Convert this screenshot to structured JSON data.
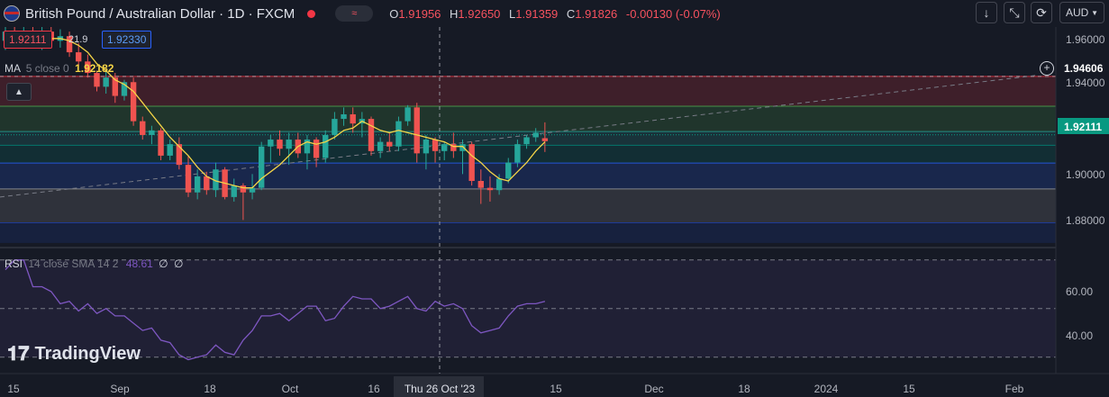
{
  "header": {
    "title": "British Pound / Australian Dollar · 1D · FXCM",
    "toggle_glyph": "≈",
    "ohlc": {
      "o_label": "O",
      "o": "1.91956",
      "h_label": "H",
      "h": "1.92650",
      "l_label": "L",
      "l": "1.91359",
      "c_label": "C",
      "c": "1.91826",
      "change": "-0.00130 (-0.07%)"
    }
  },
  "toolbar": {
    "down_icon": "↓",
    "expand_icon": "⤡",
    "screen_icon": "⟳",
    "currency": "AUD"
  },
  "price_boxes": {
    "sell": "1.92111",
    "spread": "21.9",
    "buy": "1.92330"
  },
  "ma_legend": {
    "label": "MA",
    "params": "5 close 0",
    "value": "1.92182"
  },
  "rsi_legend": {
    "label": "RSI",
    "params": "14 close SMA 14 2",
    "value": "48.61",
    "extra1": "∅",
    "extra2": "∅"
  },
  "logo": {
    "text": "TradingView"
  },
  "price_axis": {
    "ticks": [
      "1.96000",
      "1.94000",
      "1.90000",
      "1.88000"
    ],
    "alert_price": "1.94606",
    "current_price": "1.92111"
  },
  "rsi_axis": {
    "ticks": [
      "60.00",
      "40.00"
    ]
  },
  "time_axis": {
    "labels": [
      "15",
      "Sep",
      "18",
      "Oct",
      "16",
      "Thu 26 Oct '23",
      "15",
      "Dec",
      "18",
      "2024",
      "15",
      "Feb"
    ]
  },
  "colors": {
    "up": "#26a69a",
    "down": "#ef5350",
    "ma": "#f5d547",
    "rsi": "#7e57c2",
    "bg": "#161a25"
  },
  "chart_data": [
    {
      "type": "candlestick",
      "title": "British Pound / Australian Dollar · 1D · FXCM",
      "ylim": [
        1.872,
        1.968
      ],
      "candles": [
        {
          "o": 1.962,
          "h": 1.968,
          "l": 1.958,
          "c": 1.966
        },
        {
          "o": 1.966,
          "h": 1.968,
          "l": 1.96,
          "c": 1.962
        },
        {
          "o": 1.962,
          "h": 1.968,
          "l": 1.959,
          "c": 1.965
        },
        {
          "o": 1.965,
          "h": 1.968,
          "l": 1.96,
          "c": 1.961
        },
        {
          "o": 1.961,
          "h": 1.968,
          "l": 1.958,
          "c": 1.966
        },
        {
          "o": 1.966,
          "h": 1.968,
          "l": 1.961,
          "c": 1.962
        },
        {
          "o": 1.962,
          "h": 1.967,
          "l": 1.959,
          "c": 1.964
        },
        {
          "o": 1.964,
          "h": 1.966,
          "l": 1.955,
          "c": 1.957
        },
        {
          "o": 1.957,
          "h": 1.961,
          "l": 1.951,
          "c": 1.953
        },
        {
          "o": 1.953,
          "h": 1.956,
          "l": 1.946,
          "c": 1.948
        },
        {
          "o": 1.948,
          "h": 1.949,
          "l": 1.94,
          "c": 1.942
        },
        {
          "o": 1.942,
          "h": 1.949,
          "l": 1.939,
          "c": 1.946
        },
        {
          "o": 1.946,
          "h": 1.948,
          "l": 1.935,
          "c": 1.938
        },
        {
          "o": 1.938,
          "h": 1.945,
          "l": 1.936,
          "c": 1.944
        },
        {
          "o": 1.944,
          "h": 1.946,
          "l": 1.925,
          "c": 1.927
        },
        {
          "o": 1.927,
          "h": 1.929,
          "l": 1.919,
          "c": 1.921
        },
        {
          "o": 1.921,
          "h": 1.925,
          "l": 1.917,
          "c": 1.923
        },
        {
          "o": 1.923,
          "h": 1.924,
          "l": 1.91,
          "c": 1.912
        },
        {
          "o": 1.912,
          "h": 1.919,
          "l": 1.91,
          "c": 1.917
        },
        {
          "o": 1.917,
          "h": 1.92,
          "l": 1.906,
          "c": 1.908
        },
        {
          "o": 1.908,
          "h": 1.912,
          "l": 1.894,
          "c": 1.896
        },
        {
          "o": 1.896,
          "h": 1.906,
          "l": 1.893,
          "c": 1.903
        },
        {
          "o": 1.903,
          "h": 1.905,
          "l": 1.895,
          "c": 1.897
        },
        {
          "o": 1.897,
          "h": 1.909,
          "l": 1.894,
          "c": 1.906
        },
        {
          "o": 1.906,
          "h": 1.907,
          "l": 1.893,
          "c": 1.894
        },
        {
          "o": 1.894,
          "h": 1.902,
          "l": 1.892,
          "c": 1.899
        },
        {
          "o": 1.899,
          "h": 1.9,
          "l": 1.884,
          "c": 1.896
        },
        {
          "o": 1.896,
          "h": 1.904,
          "l": 1.893,
          "c": 1.898
        },
        {
          "o": 1.898,
          "h": 1.918,
          "l": 1.897,
          "c": 1.916
        },
        {
          "o": 1.916,
          "h": 1.921,
          "l": 1.909,
          "c": 1.919
        },
        {
          "o": 1.919,
          "h": 1.923,
          "l": 1.912,
          "c": 1.915
        },
        {
          "o": 1.915,
          "h": 1.922,
          "l": 1.908,
          "c": 1.919
        },
        {
          "o": 1.919,
          "h": 1.922,
          "l": 1.911,
          "c": 1.913
        },
        {
          "o": 1.913,
          "h": 1.921,
          "l": 1.906,
          "c": 1.919
        },
        {
          "o": 1.919,
          "h": 1.92,
          "l": 1.907,
          "c": 1.911
        },
        {
          "o": 1.911,
          "h": 1.923,
          "l": 1.909,
          "c": 1.921
        },
        {
          "o": 1.921,
          "h": 1.931,
          "l": 1.919,
          "c": 1.928
        },
        {
          "o": 1.928,
          "h": 1.933,
          "l": 1.925,
          "c": 1.93
        },
        {
          "o": 1.93,
          "h": 1.933,
          "l": 1.922,
          "c": 1.926
        },
        {
          "o": 1.926,
          "h": 1.931,
          "l": 1.92,
          "c": 1.928
        },
        {
          "o": 1.928,
          "h": 1.929,
          "l": 1.912,
          "c": 1.914
        },
        {
          "o": 1.914,
          "h": 1.92,
          "l": 1.911,
          "c": 1.918
        },
        {
          "o": 1.918,
          "h": 1.922,
          "l": 1.914,
          "c": 1.916
        },
        {
          "o": 1.916,
          "h": 1.929,
          "l": 1.914,
          "c": 1.927
        },
        {
          "o": 1.927,
          "h": 1.934,
          "l": 1.925,
          "c": 1.933
        },
        {
          "o": 1.933,
          "h": 1.935,
          "l": 1.909,
          "c": 1.913
        },
        {
          "o": 1.913,
          "h": 1.921,
          "l": 1.906,
          "c": 1.919
        },
        {
          "o": 1.919,
          "h": 1.92,
          "l": 1.909,
          "c": 1.914
        },
        {
          "o": 1.914,
          "h": 1.918,
          "l": 1.91,
          "c": 1.917
        },
        {
          "o": 1.917,
          "h": 1.922,
          "l": 1.911,
          "c": 1.914
        },
        {
          "o": 1.914,
          "h": 1.919,
          "l": 1.904,
          "c": 1.917
        },
        {
          "o": 1.917,
          "h": 1.918,
          "l": 1.899,
          "c": 1.901
        },
        {
          "o": 1.901,
          "h": 1.906,
          "l": 1.891,
          "c": 1.898
        },
        {
          "o": 1.898,
          "h": 1.903,
          "l": 1.892,
          "c": 1.897
        },
        {
          "o": 1.897,
          "h": 1.904,
          "l": 1.895,
          "c": 1.902
        },
        {
          "o": 1.902,
          "h": 1.911,
          "l": 1.9,
          "c": 1.909
        },
        {
          "o": 1.909,
          "h": 1.919,
          "l": 1.907,
          "c": 1.917
        },
        {
          "o": 1.917,
          "h": 1.921,
          "l": 1.915,
          "c": 1.92
        },
        {
          "o": 1.92,
          "h": 1.924,
          "l": 1.918,
          "c": 1.922
        },
        {
          "o": 1.9196,
          "h": 1.9265,
          "l": 1.9136,
          "c": 1.9183
        }
      ],
      "ma": [
        1.964,
        1.964,
        1.963,
        1.963,
        1.963,
        1.963,
        1.963,
        1.962,
        1.96,
        1.957,
        1.952,
        1.949,
        1.945,
        1.943,
        1.94,
        1.935,
        1.93,
        1.925,
        1.92,
        1.916,
        1.912,
        1.907,
        1.903,
        1.901,
        1.9,
        1.899,
        1.898,
        1.898,
        1.902,
        1.905,
        1.908,
        1.912,
        1.916,
        1.918,
        1.917,
        1.918,
        1.92,
        1.923,
        1.924,
        1.927,
        1.925,
        1.923,
        1.922,
        1.923,
        1.922,
        1.921,
        1.92,
        1.919,
        1.918,
        1.916,
        1.916,
        1.912,
        1.909,
        1.905,
        1.902,
        1.901,
        1.905,
        1.909,
        1.914,
        1.918
      ],
      "zones": [
        {
          "from": 1.9465,
          "to": 1.9335,
          "color": "#f23645"
        },
        {
          "from": 1.9335,
          "to": 1.9225,
          "color": "#4caf50"
        },
        {
          "from": 1.9225,
          "to": 1.9165,
          "color": "#26a69a"
        },
        {
          "from": 1.9165,
          "to": 1.9088,
          "color": "#00897b"
        },
        {
          "from": 1.9088,
          "to": 1.8975,
          "color": "#2962ff"
        },
        {
          "from": 1.8975,
          "to": 1.8828,
          "color": "#9e9e9e"
        },
        {
          "from": 1.8828,
          "to": 1.874,
          "color": "#1e40af"
        }
      ],
      "trendline": {
        "from": 1.894,
        "to": 1.947
      }
    },
    {
      "type": "line",
      "series": [
        {
          "values": [
            66,
            70,
            70,
            59,
            59,
            57,
            52,
            53,
            49,
            52,
            48,
            50,
            47,
            47,
            44,
            41,
            42,
            37,
            36,
            31,
            29,
            30,
            31,
            35,
            32,
            31,
            37,
            41,
            47,
            47,
            48,
            45,
            48,
            51,
            51,
            45,
            46,
            51,
            55,
            54,
            54,
            50,
            51,
            53,
            55,
            50,
            49,
            53,
            51,
            52,
            50,
            43,
            40,
            41,
            42,
            47,
            51,
            52,
            52,
            53
          ]
        }
      ],
      "ylim": [
        24,
        74
      ],
      "levels": [
        70,
        50,
        30
      ]
    }
  ]
}
